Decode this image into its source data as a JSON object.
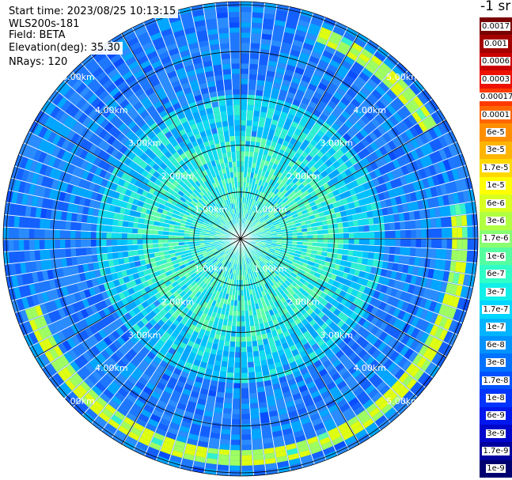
{
  "info": {
    "start_time": "Start time: 2023/08/25 10:13:15",
    "device": "WLS200s-181",
    "field": "Field: BETA",
    "elevation": "Elevation(deg): 35.30",
    "nrays": "NRays: 120"
  },
  "units_label": "-1 sr",
  "ring_labels": [
    "1.00km",
    "2.00km",
    "3.00km",
    "4.00km",
    "5.00km"
  ],
  "colorbar": [
    {
      "label": "0.0017",
      "color": "#7a0000"
    },
    {
      "label": "0.001",
      "color": "#a40000"
    },
    {
      "label": "0.0006",
      "color": "#cc0000"
    },
    {
      "label": "0.0003",
      "color": "#ee1100"
    },
    {
      "label": "0.00017",
      "color": "#ff3a00"
    },
    {
      "label": "0.0001",
      "color": "#ff6600"
    },
    {
      "label": "6e-5",
      "color": "#ff8f00"
    },
    {
      "label": "3e-5",
      "color": "#ffb400"
    },
    {
      "label": "1.7e-5",
      "color": "#ffd800"
    },
    {
      "label": "1e-5",
      "color": "#ffff00"
    },
    {
      "label": "6e-6",
      "color": "#d8ff20"
    },
    {
      "label": "3e-6",
      "color": "#b0ff40"
    },
    {
      "label": "1.7e-6",
      "color": "#88ff70"
    },
    {
      "label": "1e-6",
      "color": "#55ffa0"
    },
    {
      "label": "6e-7",
      "color": "#30ffc8"
    },
    {
      "label": "3e-7",
      "color": "#10f0e8"
    },
    {
      "label": "1.7e-7",
      "color": "#00d6ff"
    },
    {
      "label": "1e-7",
      "color": "#00b4ff"
    },
    {
      "label": "6e-8",
      "color": "#0092ff"
    },
    {
      "label": "3e-8",
      "color": "#0072ff"
    },
    {
      "label": "1.7e-8",
      "color": "#0052ff"
    },
    {
      "label": "1e-8",
      "color": "#0034ff"
    },
    {
      "label": "6e-9",
      "color": "#0018ee"
    },
    {
      "label": "3e-9",
      "color": "#0006cc"
    },
    {
      "label": "1.7e-9",
      "color": "#00009e"
    },
    {
      "label": "1e-9",
      "color": "#000070"
    }
  ]
}
